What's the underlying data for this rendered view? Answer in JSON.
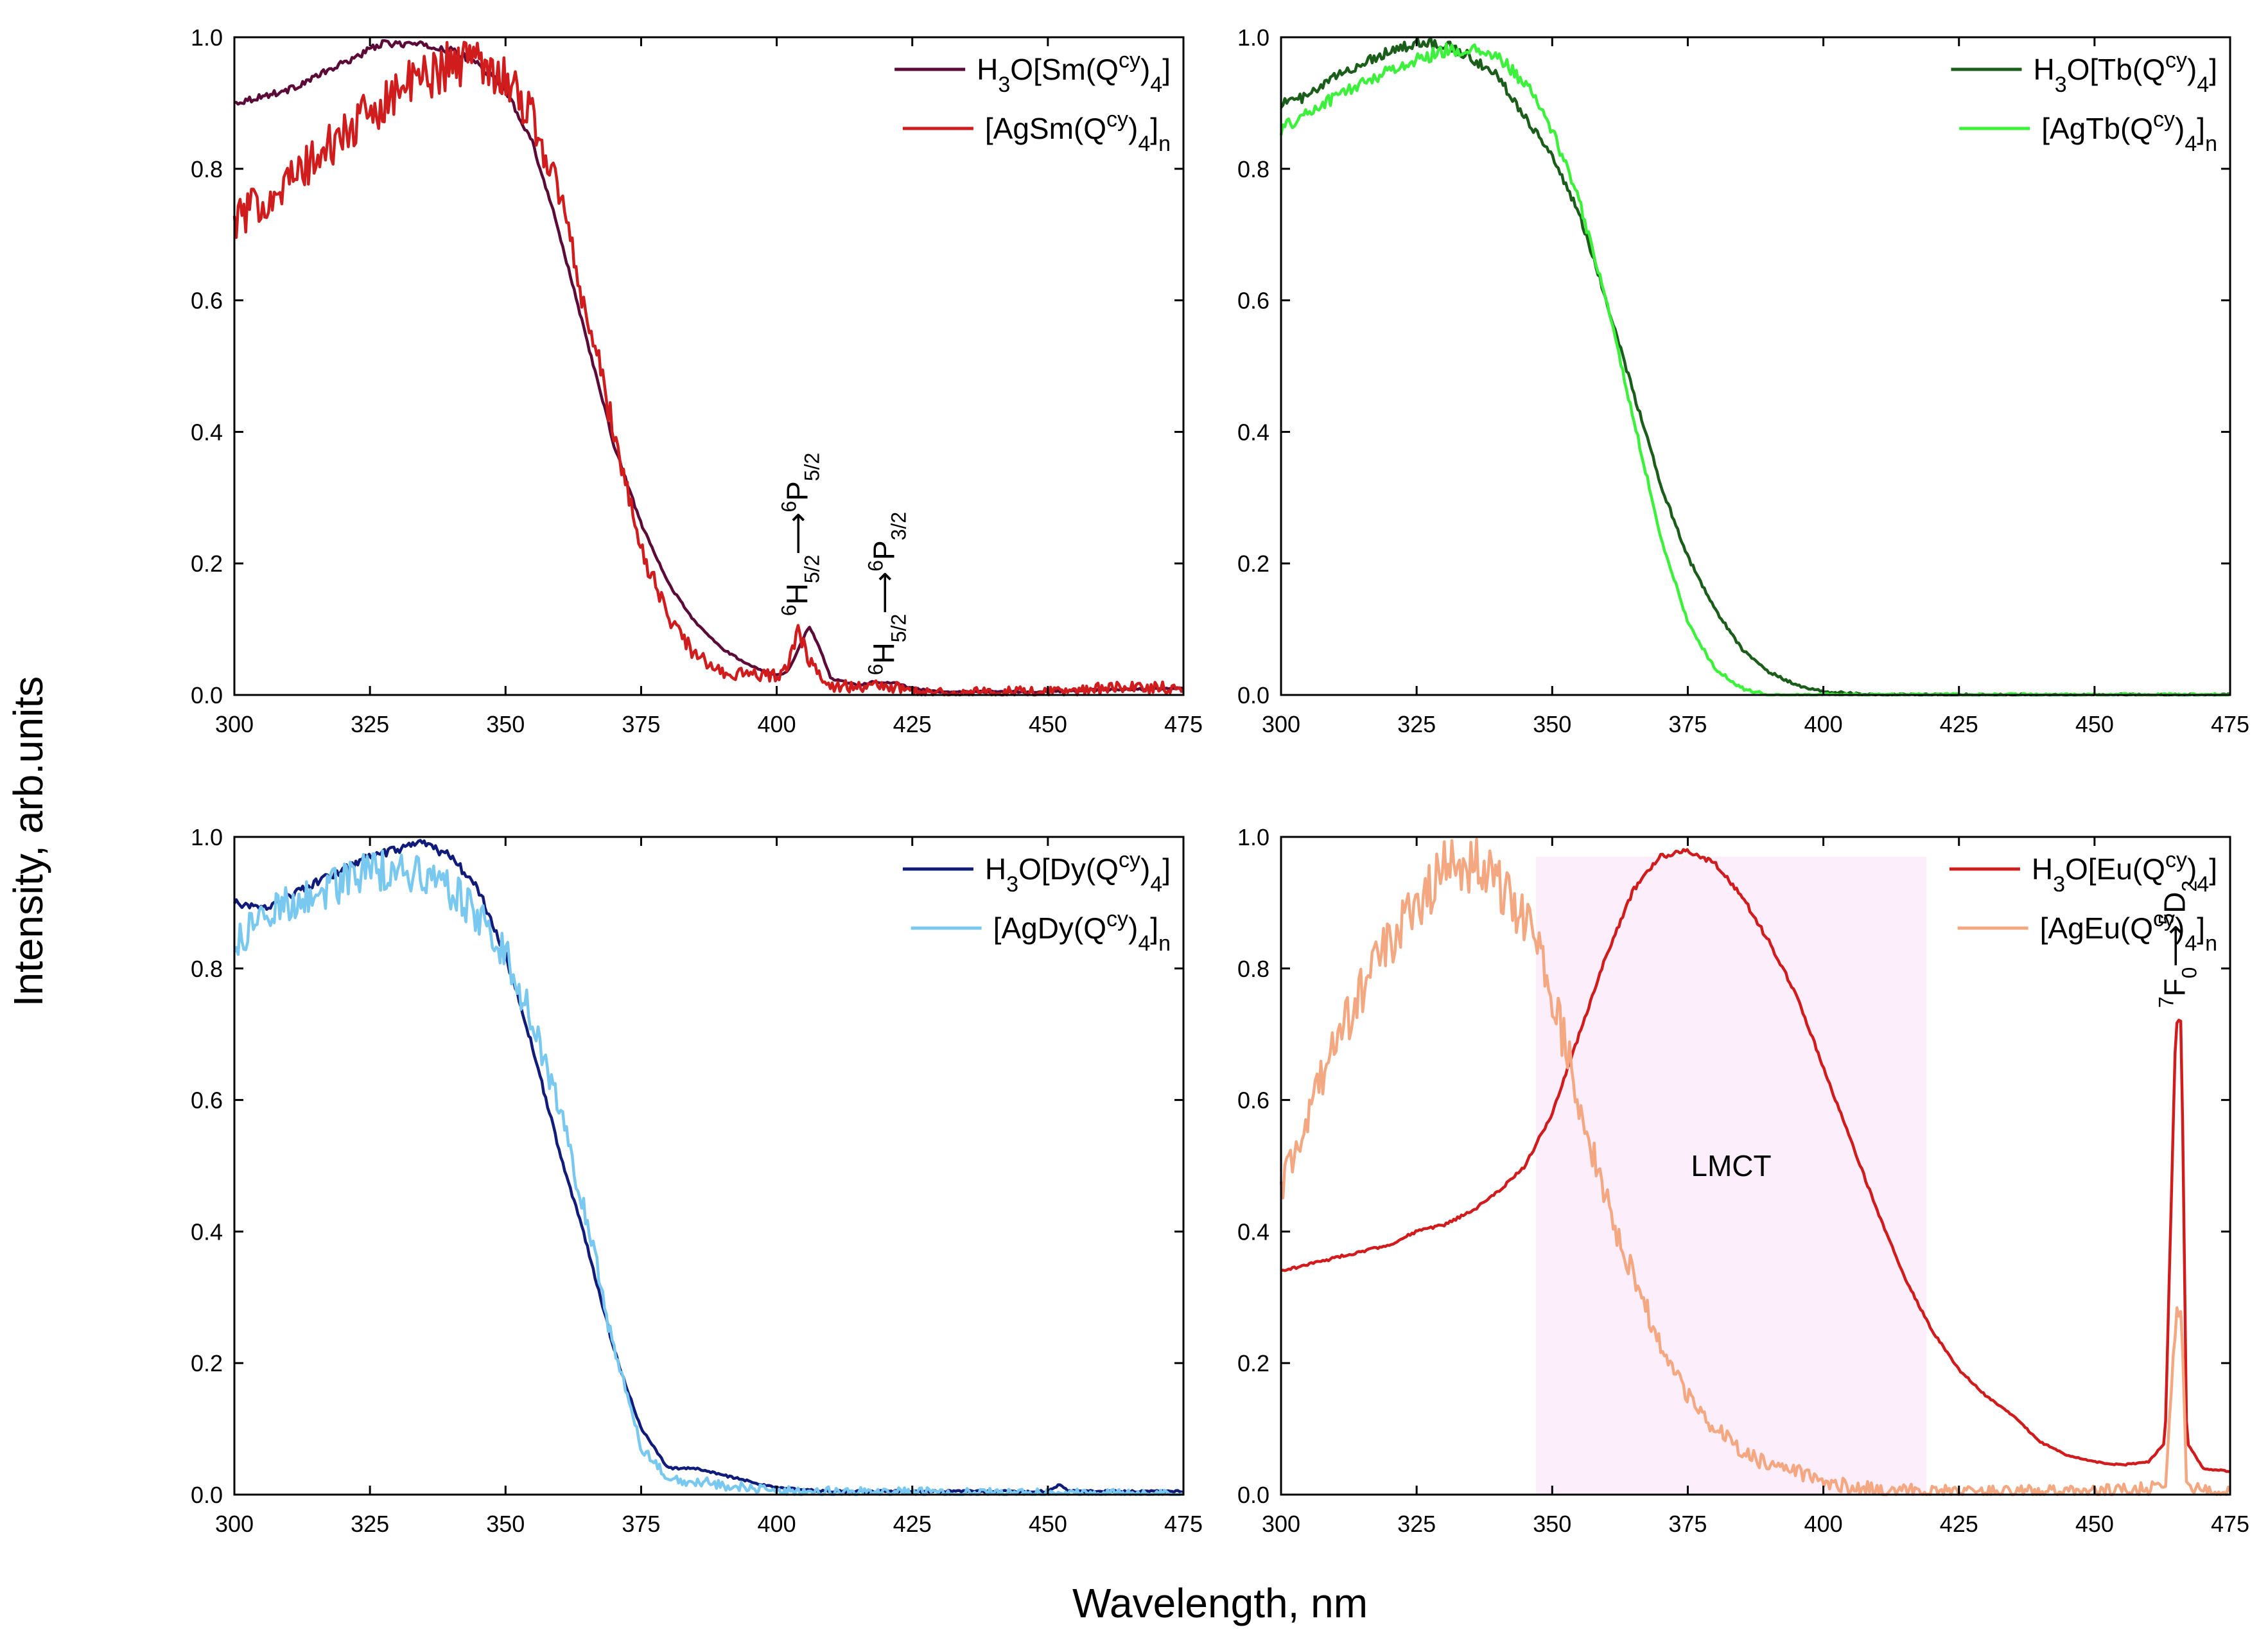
{
  "xlabel": "Wavelength, nm",
  "ylabel": "Intensity, arb.units",
  "chart_data": [
    {
      "type": "line",
      "panel": "top-left",
      "xlim": [
        300,
        475
      ],
      "ylim": [
        0,
        1.0
      ],
      "xticks": [
        300,
        325,
        350,
        375,
        400,
        425,
        450,
        475
      ],
      "yticks": [
        0.0,
        0.2,
        0.4,
        0.6,
        0.8,
        1.0
      ],
      "legend_placement": "top-right",
      "series": [
        {
          "legend": {
            "base": "H",
            "sub1": "3",
            "mid": "O[Sm(Q",
            "sup": "cy",
            "close": ")",
            "sub2": "4",
            "end": "]",
            "sub3": ""
          },
          "color": "#5c0a38",
          "noise": 0.004,
          "points": [
            [
              300,
              0.9
            ],
            [
              310,
              0.92
            ],
            [
              320,
              0.96
            ],
            [
              327,
              0.99
            ],
            [
              333,
              0.99
            ],
            [
              340,
              0.98
            ],
            [
              345,
              0.96
            ],
            [
              350,
              0.92
            ],
            [
              355,
              0.84
            ],
            [
              360,
              0.7
            ],
            [
              365,
              0.54
            ],
            [
              370,
              0.38
            ],
            [
              375,
              0.26
            ],
            [
              380,
              0.17
            ],
            [
              385,
              0.11
            ],
            [
              390,
              0.07
            ],
            [
              395,
              0.045
            ],
            [
              400,
              0.03
            ],
            [
              402,
              0.035
            ],
            [
              404,
              0.07
            ],
            [
              406,
              0.105
            ],
            [
              408,
              0.07
            ],
            [
              410,
              0.025
            ],
            [
              415,
              0.015
            ],
            [
              418,
              0.02
            ],
            [
              422,
              0.018
            ],
            [
              425,
              0.01
            ],
            [
              430,
              0.005
            ],
            [
              450,
              0.005
            ],
            [
              460,
              0.008
            ],
            [
              475,
              0.01
            ]
          ]
        },
        {
          "legend": {
            "base": "[AgSm(Q",
            "sub1": "",
            "mid": "",
            "sup": "cy",
            "close": ")",
            "sub2": "4",
            "end": "]",
            "sub3": "n"
          },
          "color": "#d01c1c",
          "noise": 0.03,
          "points": [
            [
              300,
              0.72
            ],
            [
              310,
              0.78
            ],
            [
              320,
              0.85
            ],
            [
              330,
              0.92
            ],
            [
              340,
              0.96
            ],
            [
              345,
              0.97
            ],
            [
              350,
              0.94
            ],
            [
              355,
              0.88
            ],
            [
              360,
              0.76
            ],
            [
              365,
              0.58
            ],
            [
              370,
              0.4
            ],
            [
              375,
              0.22
            ],
            [
              380,
              0.12
            ],
            [
              385,
              0.06
            ],
            [
              390,
              0.035
            ],
            [
              395,
              0.03
            ],
            [
              400,
              0.03
            ],
            [
              402,
              0.04
            ],
            [
              404,
              0.1
            ],
            [
              406,
              0.05
            ],
            [
              410,
              0.015
            ],
            [
              415,
              0.012
            ],
            [
              420,
              0.015
            ],
            [
              425,
              0.005
            ],
            [
              450,
              0.003
            ],
            [
              460,
              0.01
            ],
            [
              475,
              0.012
            ]
          ]
        }
      ],
      "annotations": [
        {
          "pre": "6",
          "a": "H",
          "asub": "5/2",
          "arrow": "⟶",
          "bpre": "6",
          "b": "P",
          "bsub": "5/2",
          "x": 404,
          "y": 0.12
        },
        {
          "pre": "6",
          "a": "H",
          "asub": "5/2",
          "arrow": "⟶",
          "bpre": "6",
          "b": "P",
          "bsub": "3/2",
          "x": 420,
          "y": 0.03
        }
      ]
    },
    {
      "type": "line",
      "panel": "top-right",
      "xlim": [
        300,
        475
      ],
      "ylim": [
        0,
        1.0
      ],
      "xticks": [
        300,
        325,
        350,
        375,
        400,
        425,
        450,
        475
      ],
      "yticks": [
        0.0,
        0.2,
        0.4,
        0.6,
        0.8,
        1.0
      ],
      "legend_placement": "top-right",
      "series": [
        {
          "legend": {
            "base": "H",
            "sub1": "3",
            "mid": "O[Tb(Q",
            "sup": "cy",
            "close": ")",
            "sub2": "4",
            "end": "]",
            "sub3": ""
          },
          "color": "#1a5e1a",
          "noise": 0.006,
          "points": [
            [
              300,
              0.9
            ],
            [
              305,
              0.91
            ],
            [
              310,
              0.94
            ],
            [
              315,
              0.96
            ],
            [
              320,
              0.98
            ],
            [
              325,
              0.99
            ],
            [
              330,
              0.99
            ],
            [
              335,
              0.97
            ],
            [
              340,
              0.94
            ],
            [
              345,
              0.88
            ],
            [
              350,
              0.82
            ],
            [
              355,
              0.73
            ],
            [
              360,
              0.6
            ],
            [
              365,
              0.46
            ],
            [
              370,
              0.32
            ],
            [
              375,
              0.21
            ],
            [
              380,
              0.13
            ],
            [
              385,
              0.07
            ],
            [
              390,
              0.035
            ],
            [
              395,
              0.015
            ],
            [
              400,
              0.005
            ],
            [
              410,
              0.0
            ],
            [
              475,
              0.0
            ]
          ]
        },
        {
          "legend": {
            "base": "[AgTb(Q",
            "sub1": "",
            "mid": "",
            "sup": "cy",
            "close": ")",
            "sub2": "4",
            "end": "]",
            "sub3": "n"
          },
          "color": "#3cf03c",
          "noise": 0.008,
          "points": [
            [
              300,
              0.86
            ],
            [
              310,
              0.91
            ],
            [
              320,
              0.95
            ],
            [
              330,
              0.98
            ],
            [
              335,
              0.98
            ],
            [
              340,
              0.97
            ],
            [
              345,
              0.93
            ],
            [
              350,
              0.86
            ],
            [
              355,
              0.75
            ],
            [
              360,
              0.6
            ],
            [
              365,
              0.42
            ],
            [
              370,
              0.24
            ],
            [
              375,
              0.11
            ],
            [
              380,
              0.04
            ],
            [
              385,
              0.01
            ],
            [
              390,
              0.0
            ],
            [
              475,
              0.0
            ]
          ]
        }
      ],
      "annotations": []
    },
    {
      "type": "line",
      "panel": "bottom-left",
      "xlim": [
        300,
        475
      ],
      "ylim": [
        0,
        1.0
      ],
      "xticks": [
        300,
        325,
        350,
        375,
        400,
        425,
        450,
        475
      ],
      "yticks": [
        0.0,
        0.2,
        0.4,
        0.6,
        0.8,
        1.0
      ],
      "legend_placement": "top-right",
      "series": [
        {
          "legend": {
            "base": "H",
            "sub1": "3",
            "mid": "O[Dy(Q",
            "sup": "cy",
            "close": ")",
            "sub2": "4",
            "end": "]",
            "sub3": ""
          },
          "color": "#111b7a",
          "noise": 0.005,
          "points": [
            [
              300,
              0.9
            ],
            [
              305,
              0.89
            ],
            [
              310,
              0.91
            ],
            [
              315,
              0.93
            ],
            [
              320,
              0.95
            ],
            [
              325,
              0.97
            ],
            [
              330,
              0.98
            ],
            [
              335,
              0.99
            ],
            [
              340,
              0.97
            ],
            [
              345,
              0.92
            ],
            [
              350,
              0.82
            ],
            [
              355,
              0.68
            ],
            [
              360,
              0.52
            ],
            [
              365,
              0.38
            ],
            [
              370,
              0.22
            ],
            [
              375,
              0.1
            ],
            [
              380,
              0.04
            ],
            [
              385,
              0.04
            ],
            [
              390,
              0.03
            ],
            [
              395,
              0.02
            ],
            [
              400,
              0.01
            ],
            [
              410,
              0.005
            ],
            [
              450,
              0.005
            ],
            [
              452,
              0.015
            ],
            [
              454,
              0.005
            ],
            [
              475,
              0.005
            ]
          ]
        },
        {
          "legend": {
            "base": "[AgDy(Q",
            "sub1": "",
            "mid": "",
            "sup": "cy",
            "close": ")",
            "sub2": "4",
            "end": "]",
            "sub3": "n"
          },
          "color": "#78c8f0",
          "noise": 0.025,
          "points": [
            [
              300,
              0.83
            ],
            [
              305,
              0.88
            ],
            [
              310,
              0.9
            ],
            [
              320,
              0.93
            ],
            [
              325,
              0.95
            ],
            [
              330,
              0.95
            ],
            [
              335,
              0.94
            ],
            [
              340,
              0.92
            ],
            [
              345,
              0.88
            ],
            [
              350,
              0.82
            ],
            [
              355,
              0.72
            ],
            [
              360,
              0.58
            ],
            [
              365,
              0.42
            ],
            [
              370,
              0.22
            ],
            [
              375,
              0.07
            ],
            [
              380,
              0.025
            ],
            [
              385,
              0.02
            ],
            [
              390,
              0.015
            ],
            [
              400,
              0.005
            ],
            [
              475,
              0.0
            ]
          ]
        }
      ],
      "annotations": []
    },
    {
      "type": "line",
      "panel": "bottom-right",
      "xlim": [
        300,
        475
      ],
      "ylim": [
        0,
        1.0
      ],
      "xticks": [
        300,
        325,
        350,
        375,
        400,
        425,
        450,
        475
      ],
      "yticks": [
        0.0,
        0.2,
        0.4,
        0.6,
        0.8,
        1.0
      ],
      "legend_placement": "top-right",
      "shaded_region": {
        "x0": 347,
        "x1": 419,
        "y1": 0.97,
        "color": "#fdeefb",
        "label": "LMCT"
      },
      "series": [
        {
          "legend": {
            "base": "H",
            "sub1": "3",
            "mid": "O[Eu(Q",
            "sup": "cy",
            "close": ")",
            "sub2": "4",
            "end": "]",
            "sub3": ""
          },
          "color": "#d01c1c",
          "noise": 0.003,
          "points": [
            [
              300,
              0.34
            ],
            [
              305,
              0.35
            ],
            [
              310,
              0.36
            ],
            [
              315,
              0.37
            ],
            [
              320,
              0.38
            ],
            [
              325,
              0.4
            ],
            [
              330,
              0.41
            ],
            [
              335,
              0.43
            ],
            [
              340,
              0.46
            ],
            [
              345,
              0.5
            ],
            [
              350,
              0.58
            ],
            [
              355,
              0.7
            ],
            [
              360,
              0.82
            ],
            [
              365,
              0.92
            ],
            [
              370,
              0.97
            ],
            [
              375,
              0.98
            ],
            [
              380,
              0.96
            ],
            [
              385,
              0.91
            ],
            [
              390,
              0.84
            ],
            [
              395,
              0.76
            ],
            [
              400,
              0.65
            ],
            [
              405,
              0.54
            ],
            [
              410,
              0.43
            ],
            [
              415,
              0.33
            ],
            [
              420,
              0.25
            ],
            [
              425,
              0.19
            ],
            [
              430,
              0.15
            ],
            [
              435,
              0.12
            ],
            [
              440,
              0.08
            ],
            [
              445,
              0.06
            ],
            [
              450,
              0.05
            ],
            [
              455,
              0.045
            ],
            [
              460,
              0.05
            ],
            [
              463,
              0.08
            ],
            [
              465,
              0.72
            ],
            [
              466,
              0.72
            ],
            [
              467,
              0.08
            ],
            [
              470,
              0.04
            ],
            [
              475,
              0.035
            ]
          ]
        },
        {
          "legend": {
            "base": "[AgEu(Q",
            "sub1": "",
            "mid": "",
            "sup": "cy",
            "close": ")",
            "sub2": "4",
            "end": "]",
            "sub3": "n"
          },
          "color": "#f4a882",
          "noise": 0.035,
          "points": [
            [
              300,
              0.46
            ],
            [
              305,
              0.58
            ],
            [
              310,
              0.68
            ],
            [
              315,
              0.77
            ],
            [
              320,
              0.84
            ],
            [
              325,
              0.9
            ],
            [
              330,
              0.95
            ],
            [
              335,
              0.96
            ],
            [
              340,
              0.93
            ],
            [
              345,
              0.88
            ],
            [
              350,
              0.76
            ],
            [
              355,
              0.6
            ],
            [
              360,
              0.45
            ],
            [
              365,
              0.33
            ],
            [
              370,
              0.23
            ],
            [
              375,
              0.15
            ],
            [
              380,
              0.1
            ],
            [
              385,
              0.065
            ],
            [
              390,
              0.045
            ],
            [
              395,
              0.035
            ],
            [
              400,
              0.02
            ],
            [
              405,
              0.012
            ],
            [
              410,
              0.008
            ],
            [
              420,
              0.004
            ],
            [
              450,
              0.004
            ],
            [
              463,
              0.01
            ],
            [
              465,
              0.27
            ],
            [
              466,
              0.27
            ],
            [
              467,
              0.01
            ],
            [
              475,
              0.005
            ]
          ]
        }
      ],
      "annotations": [
        {
          "pre": "7",
          "a": "F",
          "asub": "0",
          "arrow": "⟶",
          "bpre": "5",
          "b": "D",
          "bsub": "2",
          "x": 465,
          "y": 0.74
        }
      ]
    }
  ]
}
